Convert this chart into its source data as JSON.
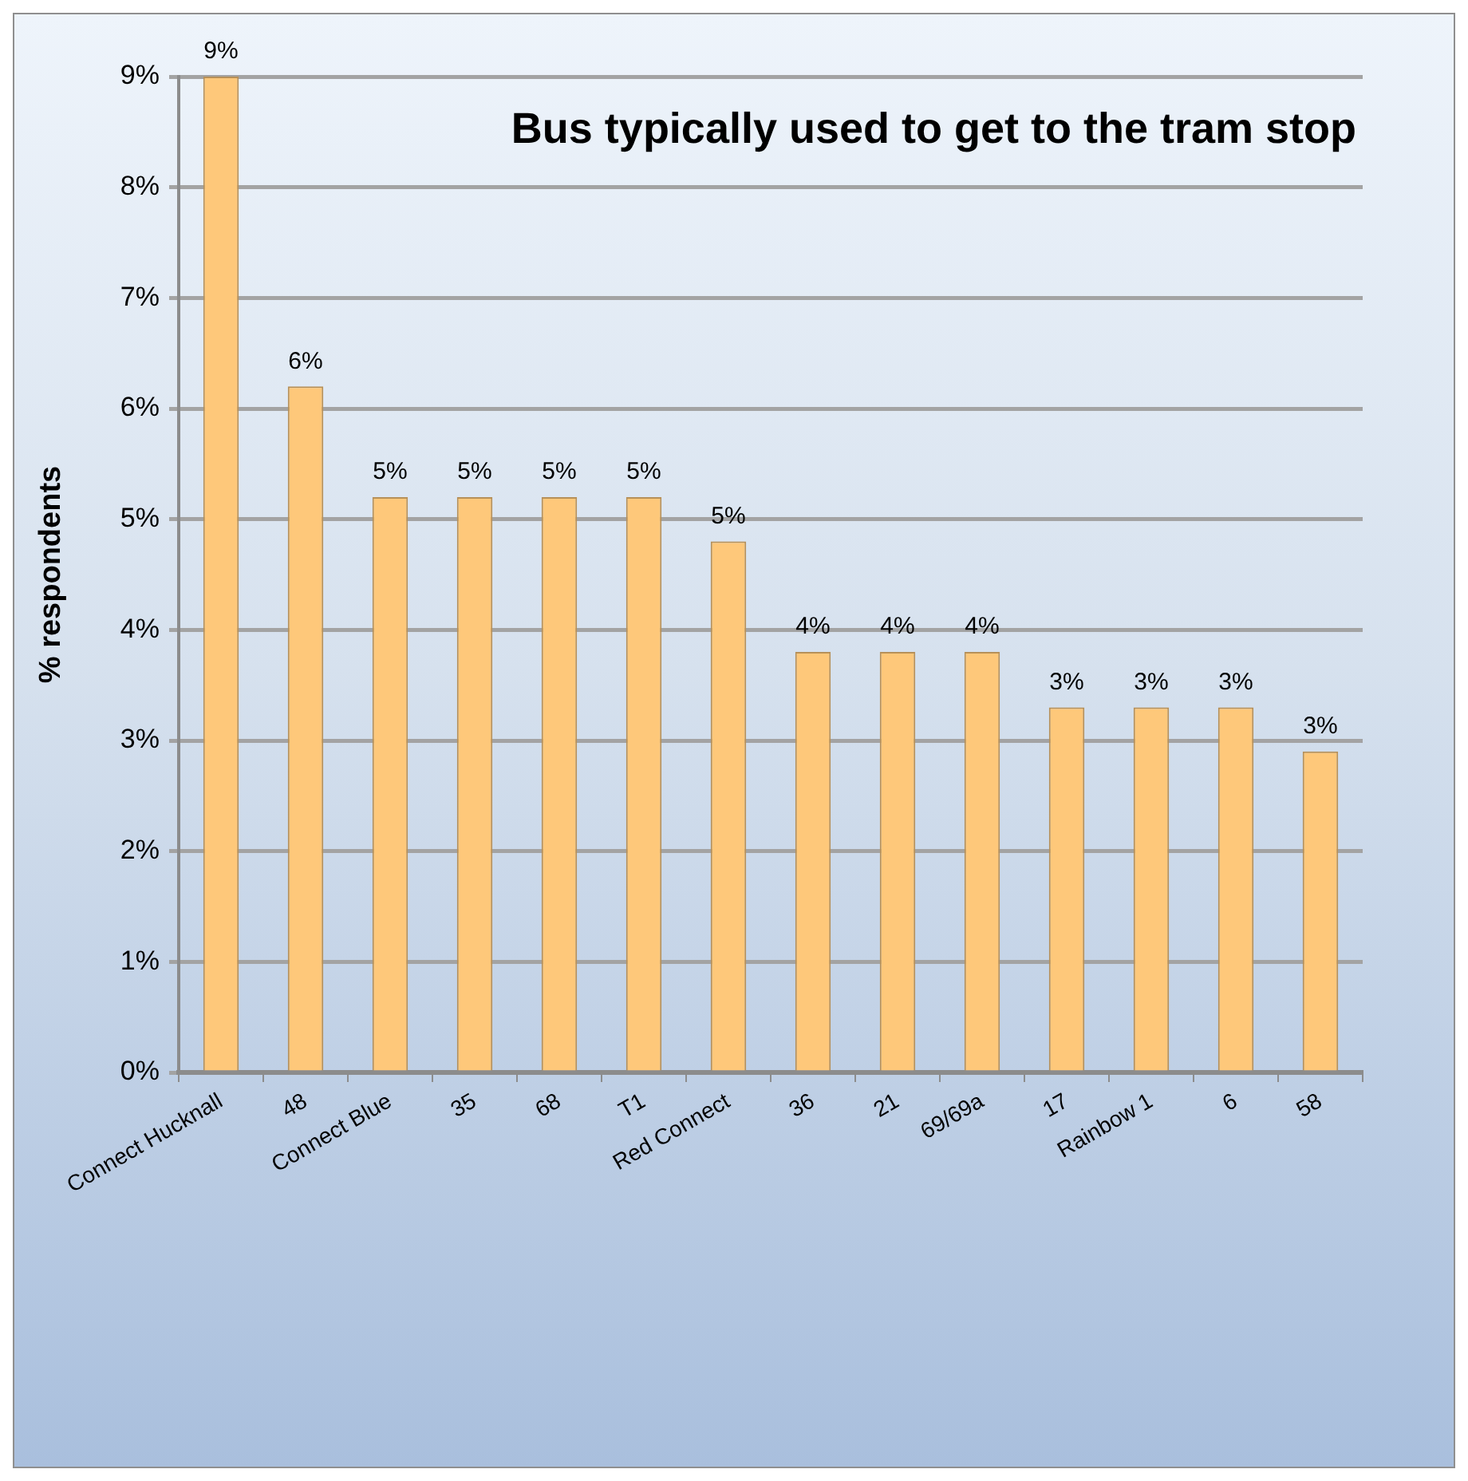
{
  "chart_data": {
    "type": "bar",
    "title": "Bus typically used to get to the tram stop",
    "ylabel": "% respondents",
    "categories": [
      "Connect Hucknall",
      "48",
      "Connect Blue",
      "35",
      "68",
      "T1",
      "Red Connect",
      "36",
      "21",
      "69/69a",
      "17",
      "Rainbow 1",
      "6",
      "58"
    ],
    "values": [
      9.0,
      6.2,
      5.2,
      5.2,
      5.2,
      5.2,
      4.8,
      3.8,
      3.8,
      3.8,
      3.3,
      3.3,
      3.3,
      2.9
    ],
    "value_labels": [
      "9%",
      "6%",
      "5%",
      "5%",
      "5%",
      "5%",
      "5%",
      "4%",
      "4%",
      "4%",
      "3%",
      "3%",
      "3%",
      "3%"
    ],
    "color": "#fec87a",
    "ylim": [
      0,
      9
    ],
    "yticks": [
      {
        "value": 0,
        "label": "0%"
      },
      {
        "value": 1,
        "label": "1%"
      },
      {
        "value": 2,
        "label": "2%"
      },
      {
        "value": 3,
        "label": "3%"
      },
      {
        "value": 4,
        "label": "4%"
      },
      {
        "value": 5,
        "label": "5%"
      },
      {
        "value": 6,
        "label": "6%"
      },
      {
        "value": 7,
        "label": "7%"
      },
      {
        "value": 8,
        "label": "8%"
      },
      {
        "value": 9,
        "label": "9%"
      }
    ],
    "grid": "y",
    "legend": false
  }
}
